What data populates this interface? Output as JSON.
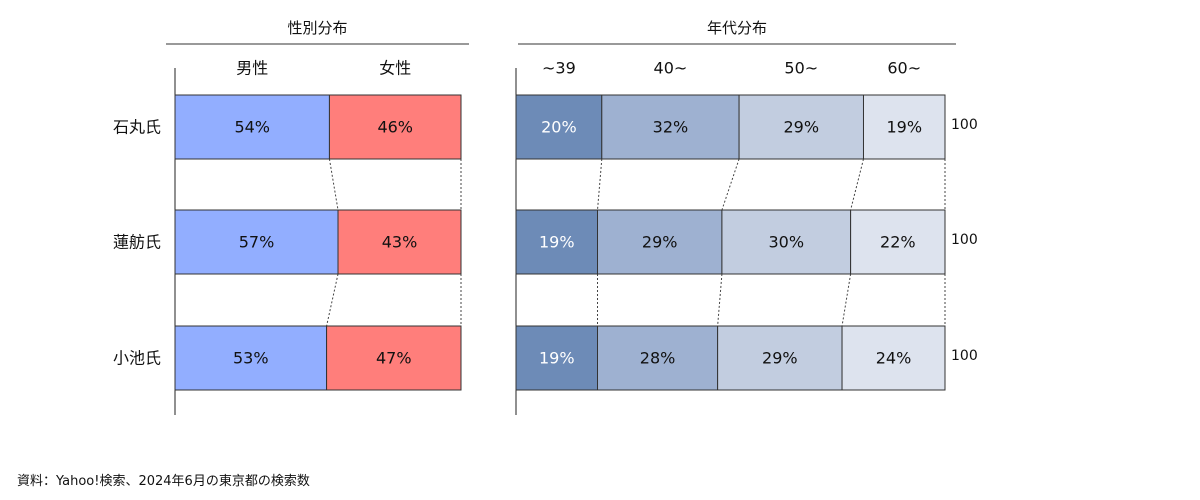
{
  "colors": {
    "male": "#92AEFF",
    "female": "#FF7E7B",
    "age": [
      "#6D8BB7",
      "#9EB1D1",
      "#C2CDE0",
      "#DDE3EE"
    ],
    "age_text": [
      "#ffffff",
      "#111111",
      "#111111",
      "#111111"
    ]
  },
  "source": "資料：Yahoo!検索、2024年6月の東京都の検索数",
  "chart_data": [
    {
      "type": "bar",
      "stacked": true,
      "orientation": "horizontal",
      "title": "性別分布",
      "categories": [
        "石丸氏",
        "蓮舫氏",
        "小池氏"
      ],
      "series": [
        {
          "name": "男性",
          "values": [
            54,
            57,
            53
          ]
        },
        {
          "name": "女性",
          "values": [
            46,
            43,
            47
          ]
        }
      ],
      "value_suffix": "%",
      "xlim": [
        0,
        100
      ]
    },
    {
      "type": "bar",
      "stacked": true,
      "orientation": "horizontal",
      "title": "年代分布",
      "categories": [
        "石丸氏",
        "蓮舫氏",
        "小池氏"
      ],
      "series": [
        {
          "name": "~39",
          "values": [
            20,
            19,
            19
          ]
        },
        {
          "name": "40~",
          "values": [
            32,
            29,
            28
          ]
        },
        {
          "name": "50~",
          "values": [
            29,
            30,
            29
          ]
        },
        {
          "name": "60~",
          "values": [
            19,
            22,
            24
          ]
        }
      ],
      "totals": [
        "100",
        "100",
        "100"
      ],
      "value_suffix": "%",
      "xlim": [
        0,
        100
      ]
    }
  ]
}
